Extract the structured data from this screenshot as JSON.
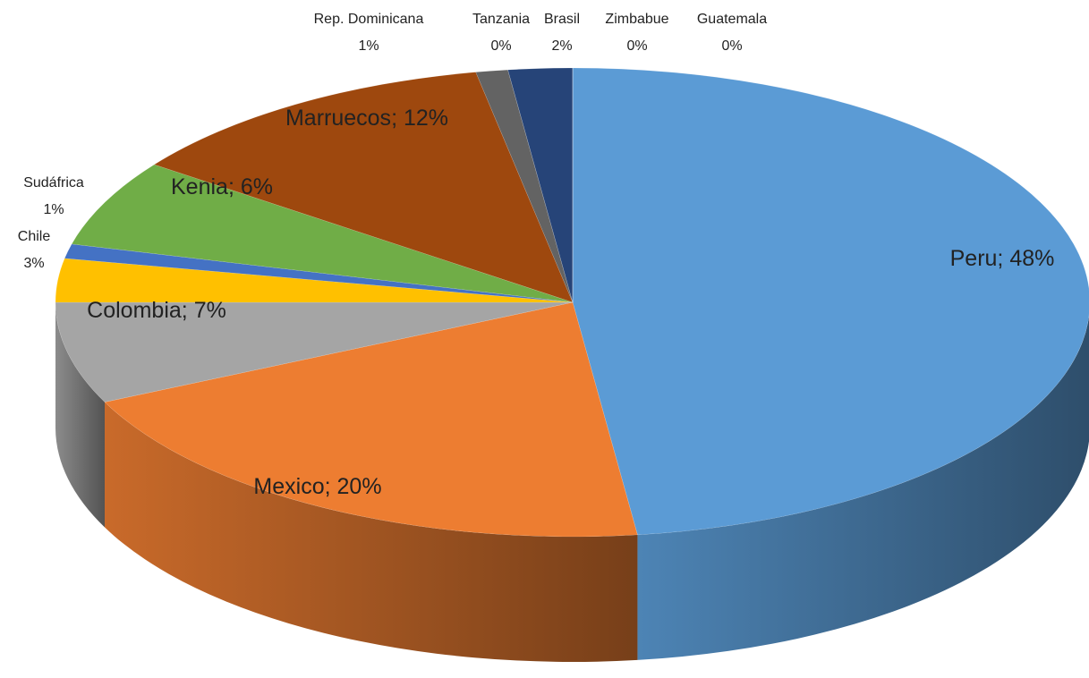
{
  "chart_data": {
    "type": "pie3d",
    "categories": [
      "Peru",
      "Mexico",
      "Colombia",
      "Chile",
      "Sudáfrica",
      "Kenia",
      "Marruecos",
      "Rep. Dominicana",
      "Tanzania",
      "Brasil",
      "Zimbabue",
      "Guatemala"
    ],
    "values": [
      48,
      20,
      7,
      3,
      1,
      6,
      12,
      1,
      0,
      2,
      0,
      0
    ],
    "value_labels": [
      "48%",
      "20%",
      "7%",
      "3%",
      "1%",
      "6%",
      "12%",
      "1%",
      "0%",
      "2%",
      "0%",
      "0%"
    ],
    "label_separator": "; ",
    "colors": [
      "#5b9bd5",
      "#ed7d31",
      "#a5a5a5",
      "#ffc000",
      "#4472c4",
      "#70ad47",
      "#9e480e",
      "#636363",
      "#997300",
      "#264478",
      "#43682b",
      "#7cafdd"
    ]
  }
}
